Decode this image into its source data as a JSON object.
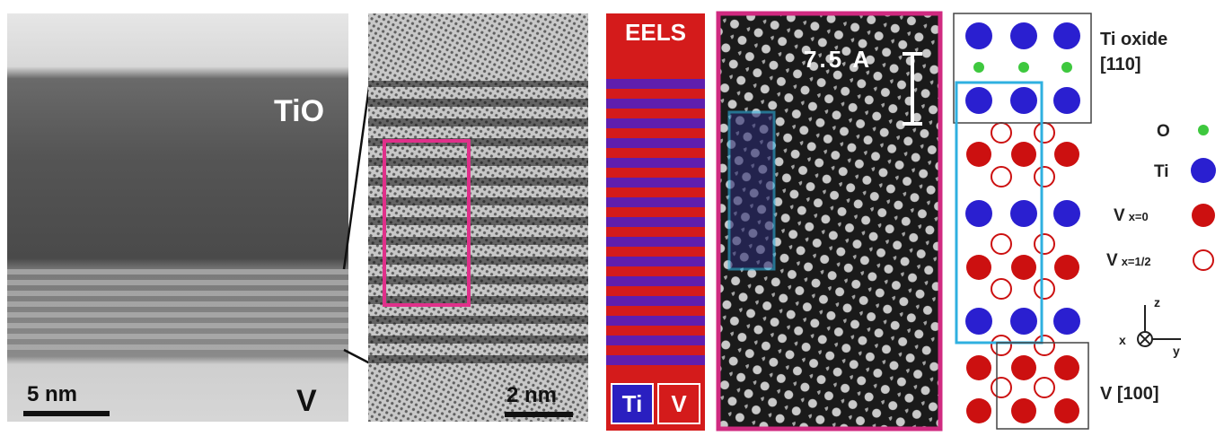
{
  "panels": {
    "overview": {
      "layer_label": "TiO",
      "scale_bar": "5 nm",
      "substrate_label": "V"
    },
    "hrtem": {
      "scale_bar": "2 nm"
    },
    "eels": {
      "title": "EELS",
      "legend": [
        "Ti",
        "V"
      ]
    },
    "haadf": {
      "scale_bar": "7.5 A"
    },
    "model": {
      "top_label": [
        "Ti oxide",
        "[110]"
      ],
      "legend": [
        {
          "label": "O"
        },
        {
          "label": "Ti"
        },
        {
          "label": "V",
          "subscript": "x=0"
        },
        {
          "label": "V",
          "subscript": "x=1/2"
        }
      ],
      "axes": {
        "z": "z",
        "x": "x",
        "y": "y"
      },
      "bottom_label": "V [100]"
    }
  }
}
